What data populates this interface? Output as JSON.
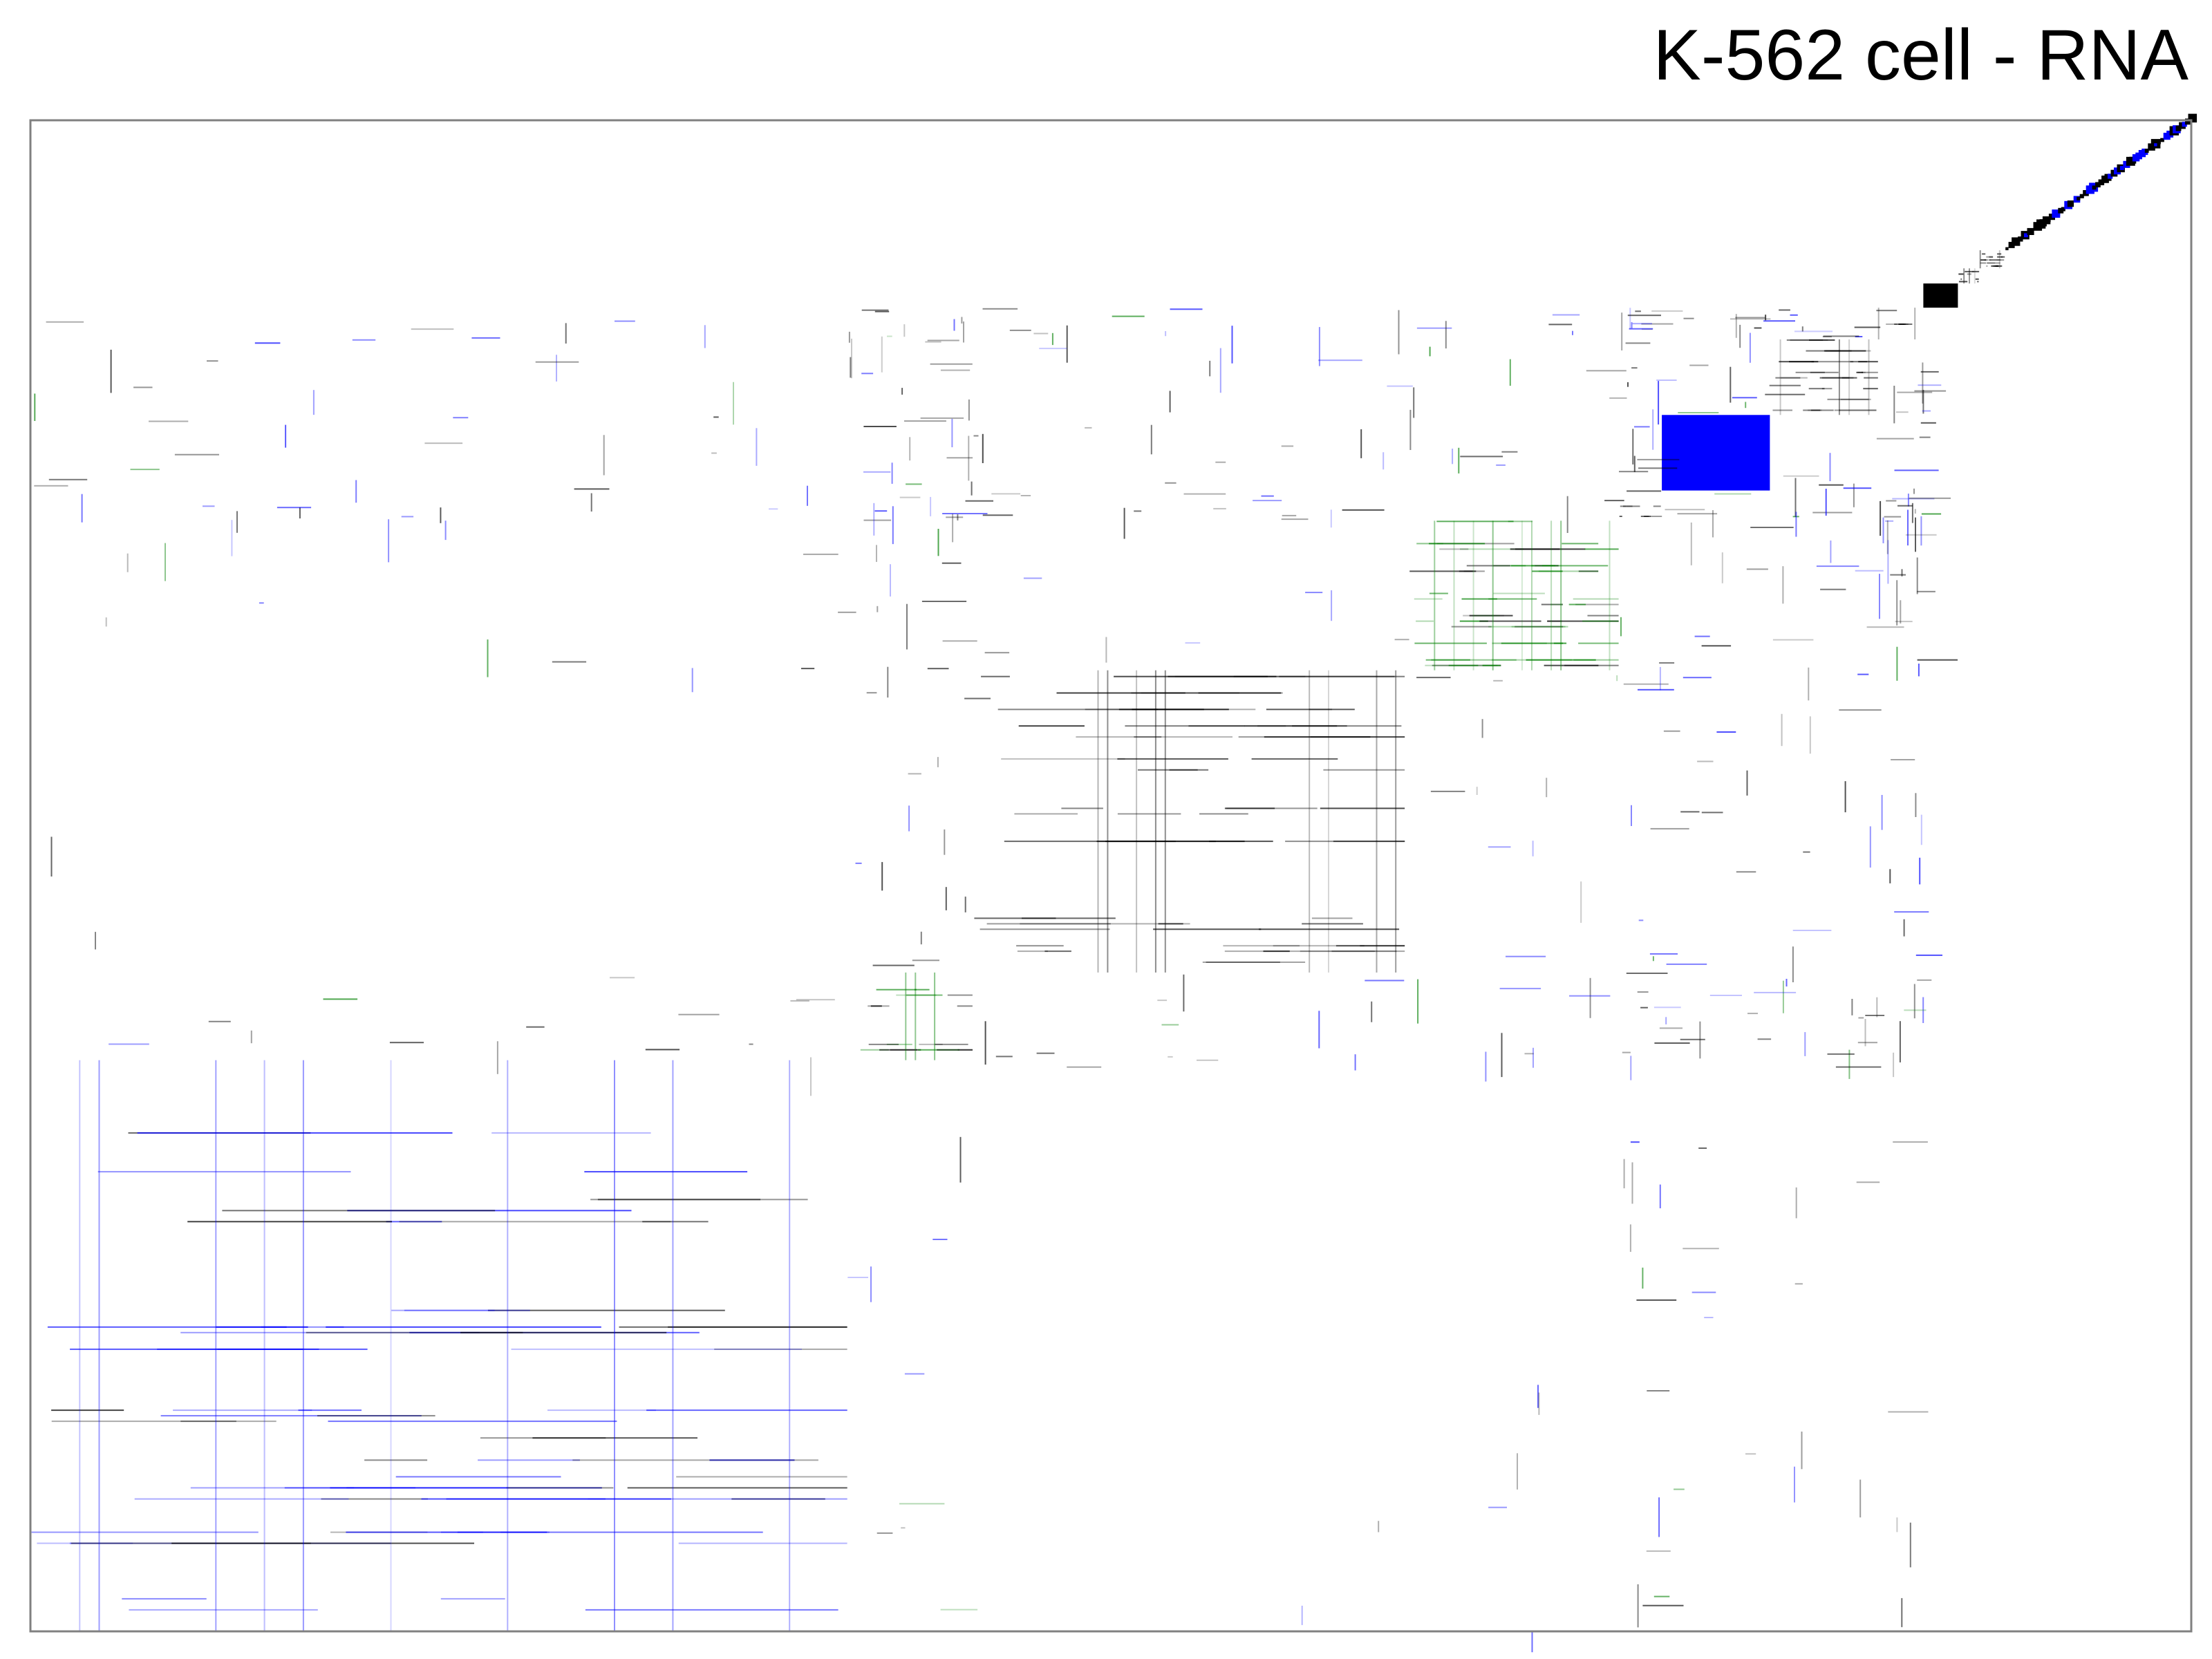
{
  "chart_data": {
    "type": "heatmap",
    "title": "K-562 cell - RNA",
    "xlabel": "",
    "ylabel": "",
    "legend": "none",
    "grid": false,
    "matrix_order": "clusters ordered along the diagonal from bottom-left (largest) to top-right (smallest)",
    "colors": {
      "background": "#ffffff",
      "frame": "#808080",
      "gray": "#000000",
      "blue": "#0000ff",
      "green": "#008000"
    },
    "clusters": [
      {
        "rank": 1,
        "share": 0.378,
        "density": 0.22,
        "palette": "blue"
      },
      {
        "rank": 2,
        "share": 0.058,
        "density": 0.4,
        "palette": "green"
      },
      {
        "rank": 3,
        "share": 0.2,
        "density": 0.28,
        "palette": "gray"
      },
      {
        "rank": 4,
        "share": 0.099,
        "density": 0.55,
        "palette": "green"
      },
      {
        "rank": 5,
        "share": 0.02,
        "density": 0.3,
        "palette": "gray"
      },
      {
        "rank": 6,
        "share": 0.05,
        "density": 1.0,
        "palette": "blue"
      },
      {
        "rank": 7,
        "share": 0.05,
        "density": 0.6,
        "palette": "gray"
      },
      {
        "rank": 8,
        "share": 0.021,
        "density": 0.3,
        "palette": "gray"
      },
      {
        "rank": 9,
        "share": 0.016,
        "density": 1.0,
        "palette": "gray"
      },
      {
        "rank": 10,
        "share": 0.01,
        "density": 0.7,
        "palette": "gray"
      },
      {
        "rank": 11,
        "share": 0.012,
        "density": 0.8,
        "palette": "gray"
      },
      {
        "rank": 12,
        "share": 0.086,
        "density": 0.9,
        "palette": "diagonal"
      }
    ]
  }
}
